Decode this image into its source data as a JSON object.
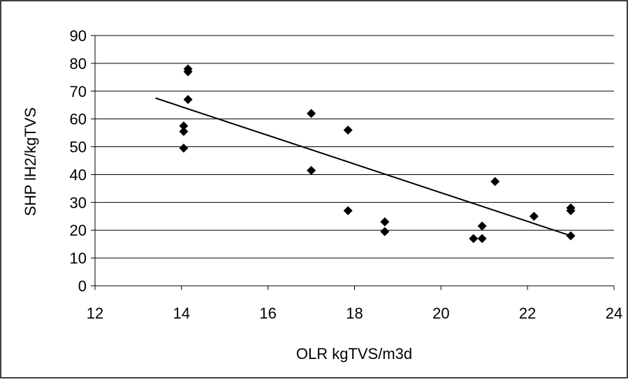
{
  "chart_data": {
    "type": "scatter",
    "title": "",
    "xlabel": "OLR kgTVS/m3d",
    "ylabel": "SHP lH2/kgTVS",
    "xlim": [
      12,
      24
    ],
    "ylim": [
      0,
      90
    ],
    "x_ticks": [
      12,
      14,
      16,
      18,
      20,
      22,
      24
    ],
    "y_ticks": [
      0,
      10,
      20,
      30,
      40,
      50,
      60,
      70,
      80,
      90
    ],
    "grid": "horizontal",
    "legend": "none",
    "series": [
      {
        "marker": "diamond",
        "color": "#000000",
        "points": [
          {
            "x": 14.05,
            "y": 57.5
          },
          {
            "x": 14.05,
            "y": 55.5
          },
          {
            "x": 14.05,
            "y": 49.5
          },
          {
            "x": 14.15,
            "y": 78.0
          },
          {
            "x": 14.15,
            "y": 77.0
          },
          {
            "x": 14.15,
            "y": 67.0
          },
          {
            "x": 17.0,
            "y": 62.0
          },
          {
            "x": 17.0,
            "y": 41.5
          },
          {
            "x": 17.85,
            "y": 56.0
          },
          {
            "x": 17.85,
            "y": 27.0
          },
          {
            "x": 18.7,
            "y": 23.0
          },
          {
            "x": 18.7,
            "y": 19.5
          },
          {
            "x": 20.75,
            "y": 17.0
          },
          {
            "x": 20.95,
            "y": 21.5
          },
          {
            "x": 20.95,
            "y": 17.0
          },
          {
            "x": 21.25,
            "y": 37.5
          },
          {
            "x": 22.15,
            "y": 25.0
          },
          {
            "x": 23.0,
            "y": 28.0
          },
          {
            "x": 23.0,
            "y": 27.0
          },
          {
            "x": 23.0,
            "y": 18.0
          }
        ]
      }
    ],
    "trendline": {
      "type": "linear",
      "color": "#000000",
      "points": [
        {
          "x": 13.4,
          "y": 67.5
        },
        {
          "x": 23.0,
          "y": 18.0
        }
      ]
    }
  }
}
